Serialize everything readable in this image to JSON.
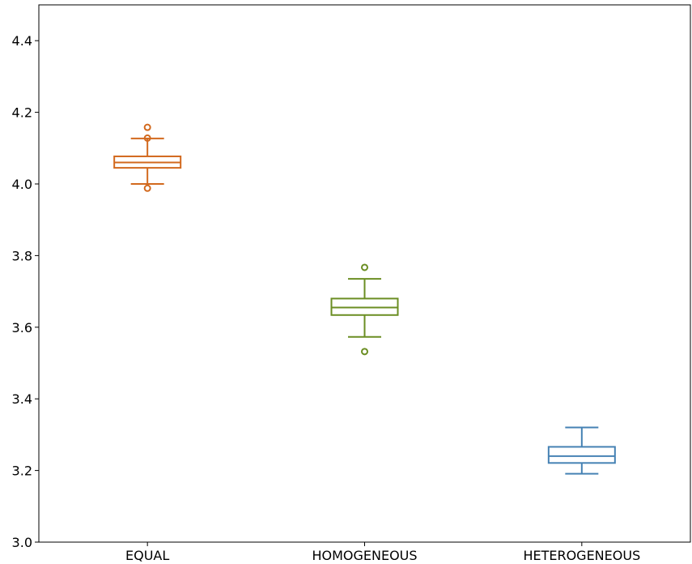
{
  "chart_data": {
    "type": "box",
    "title": "",
    "xlabel": "",
    "ylabel": "",
    "ylim": [
      3.0,
      4.5
    ],
    "yticks": [
      3.0,
      3.2,
      3.4,
      3.6,
      3.8,
      4.0,
      4.2,
      4.4
    ],
    "ytick_labels": [
      "3.0",
      "3.2",
      "3.4",
      "3.6",
      "3.8",
      "4.0",
      "4.2",
      "4.4"
    ],
    "grid": false,
    "categories": [
      "EQUAL",
      "HOMOGENEOUS",
      "HETEROGENEOUS"
    ],
    "series": [
      {
        "category": "EQUAL",
        "color": "#d2691e",
        "whisker_low": 4.0,
        "q1": 4.045,
        "median": 4.06,
        "q3": 4.077,
        "whisker_high": 4.127,
        "outliers": [
          4.158,
          4.128,
          3.988
        ]
      },
      {
        "category": "HOMOGENEOUS",
        "color": "#6b8e23",
        "whisker_low": 3.573,
        "q1": 3.634,
        "median": 3.655,
        "q3": 3.68,
        "whisker_high": 3.735,
        "outliers": [
          3.767,
          3.532
        ]
      },
      {
        "category": "HETEROGENEOUS",
        "color": "#4682b4",
        "whisker_low": 3.191,
        "q1": 3.221,
        "median": 3.24,
        "q3": 3.266,
        "whisker_high": 3.32,
        "outliers": []
      }
    ]
  }
}
